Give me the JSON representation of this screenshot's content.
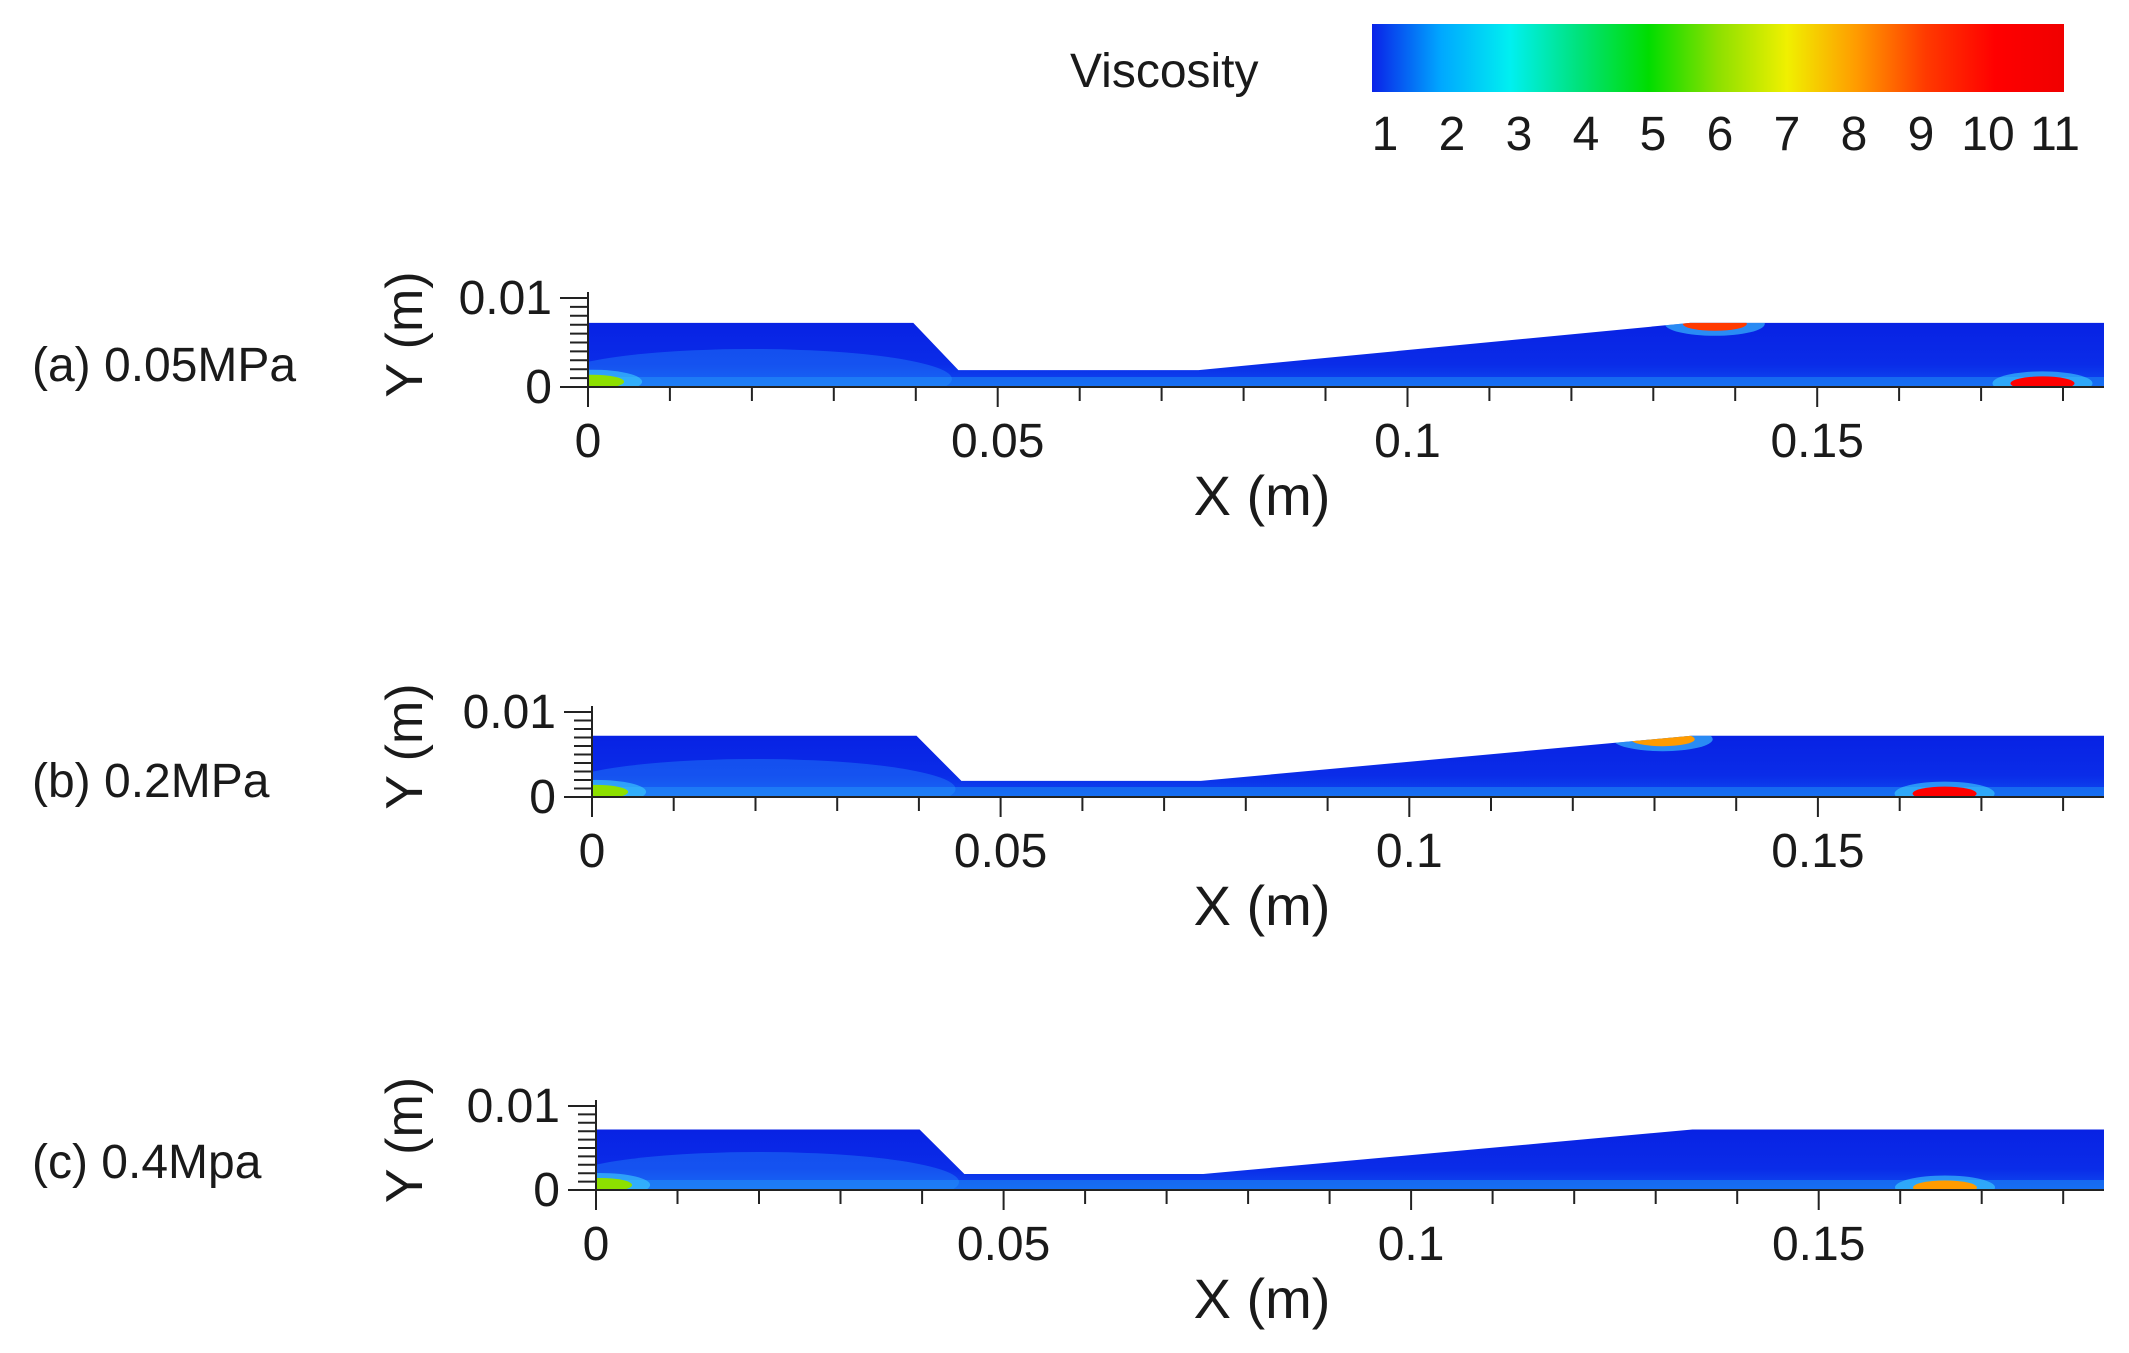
{
  "colorbar": {
    "title": "Viscosity",
    "ticks": [
      "1",
      "2",
      "3",
      "4",
      "5",
      "6",
      "7",
      "8",
      "9",
      "10",
      "11"
    ],
    "min": 1,
    "max": 11,
    "colors": [
      "#0a22e8",
      "#00a8ff",
      "#00f0f0",
      "#00e27a",
      "#00dd00",
      "#8de000",
      "#f0f000",
      "#ff9b00",
      "#ff3a00",
      "#ff0000",
      "#f00000"
    ]
  },
  "chart_data": [
    {
      "type": "heatmap",
      "label": "(a) 0.05MPa",
      "xlabel": "X (m)",
      "ylabel": "Y (m)",
      "xlim": [
        0,
        0.185
      ],
      "ylim": [
        0,
        0.01
      ],
      "xticks": [
        "0",
        "0.05",
        "0.1",
        "0.15"
      ],
      "yticks": [
        "0",
        "0.01"
      ],
      "xtick_values": [
        0,
        0.05,
        0.1,
        0.15
      ],
      "ytick_values": [
        0,
        0.01
      ],
      "outline": [
        [
          0,
          0
        ],
        [
          0,
          0.0072
        ],
        [
          0.0397,
          0.0072
        ],
        [
          0.0452,
          0.0019
        ],
        [
          0.0745,
          0.0019
        ],
        [
          0.1345,
          0.0072
        ],
        [
          0.185,
          0.0072
        ],
        [
          0.185,
          0
        ]
      ],
      "hotspots": [
        {
          "x": 0.1775,
          "y": 0.0004,
          "value": 10
        },
        {
          "x": 0.1375,
          "y": 0.0071,
          "value": 9
        },
        {
          "x": 0.0005,
          "y": 0.0006,
          "value": 6
        }
      ]
    },
    {
      "type": "heatmap",
      "label": "(b) 0.2MPa",
      "xlabel": "X (m)",
      "ylabel": "Y (m)",
      "xlim": [
        0,
        0.185
      ],
      "ylim": [
        0,
        0.01
      ],
      "xticks": [
        "0",
        "0.05",
        "0.1",
        "0.15"
      ],
      "yticks": [
        "0",
        "0.01"
      ],
      "xtick_values": [
        0,
        0.05,
        0.1,
        0.15
      ],
      "ytick_values": [
        0,
        0.01
      ],
      "outline": [
        [
          0,
          0
        ],
        [
          0,
          0.0072
        ],
        [
          0.0397,
          0.0072
        ],
        [
          0.0452,
          0.0019
        ],
        [
          0.0745,
          0.0019
        ],
        [
          0.1345,
          0.0072
        ],
        [
          0.185,
          0.0072
        ],
        [
          0.185,
          0
        ]
      ],
      "hotspots": [
        {
          "x": 0.1655,
          "y": 0.0004,
          "value": 10
        },
        {
          "x": 0.131,
          "y": 0.0068,
          "value": 8
        },
        {
          "x": 0.0005,
          "y": 0.0006,
          "value": 6
        }
      ]
    },
    {
      "type": "heatmap",
      "label": "(c) 0.4Mpa",
      "xlabel": "X (m)",
      "ylabel": "Y (m)",
      "xlim": [
        0,
        0.185
      ],
      "ylim": [
        0,
        0.01
      ],
      "xticks": [
        "0",
        "0.05",
        "0.1",
        "0.15"
      ],
      "yticks": [
        "0",
        "0.01"
      ],
      "xtick_values": [
        0,
        0.05,
        0.1,
        0.15
      ],
      "ytick_values": [
        0,
        0.01
      ],
      "outline": [
        [
          0,
          0
        ],
        [
          0,
          0.0072
        ],
        [
          0.0397,
          0.0072
        ],
        [
          0.0452,
          0.0019
        ],
        [
          0.0745,
          0.0019
        ],
        [
          0.1345,
          0.0072
        ],
        [
          0.185,
          0.0072
        ],
        [
          0.185,
          0
        ]
      ],
      "hotspots": [
        {
          "x": 0.1655,
          "y": 0.0003,
          "value": 8
        },
        {
          "x": 0.0005,
          "y": 0.0006,
          "value": 6
        }
      ]
    }
  ]
}
